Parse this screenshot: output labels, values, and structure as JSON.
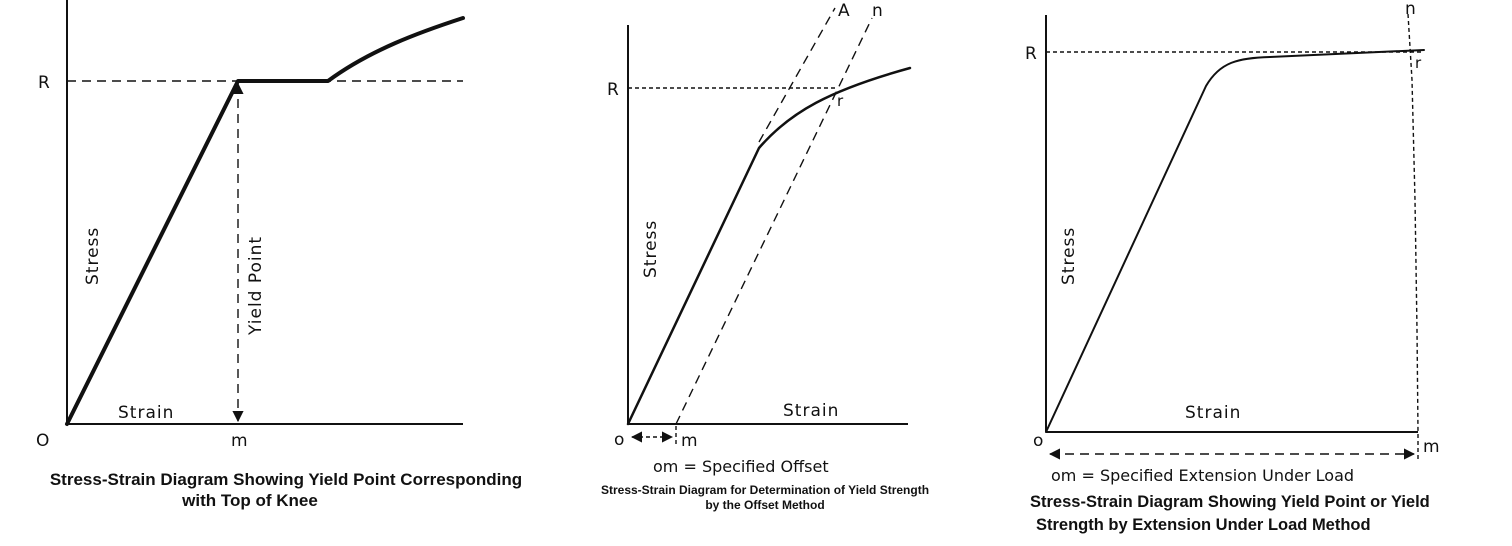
{
  "diagram1": {
    "label_R": "R",
    "label_O": "O",
    "label_m": "m",
    "axis_y": "Stress",
    "axis_x": "Strain",
    "yield_label": "Yield Point",
    "caption_line1": "Stress-Strain Diagram Showing Yield Point Corresponding",
    "caption_line2": "with Top of Knee"
  },
  "diagram2": {
    "label_R": "R",
    "label_o": "o",
    "label_m": "m",
    "label_A": "A",
    "label_n": "n",
    "label_r": "r",
    "axis_y": "Stress",
    "axis_x": "Strain",
    "note": "om = Specified Offset",
    "caption_line1": "Stress-Strain Diagram for Determination of Yield Strength",
    "caption_line2": "by the Offset Method"
  },
  "diagram3": {
    "label_R": "R",
    "label_o": "o",
    "label_m": "m",
    "label_n": "n",
    "label_r": "r",
    "axis_y": "Stress",
    "axis_x": "Strain",
    "note": "om = Specified Extension Under Load",
    "caption_line1": "Stress-Strain Diagram Showing Yield Point or Yield",
    "caption_line2": "Strength by Extension Under Load Method"
  }
}
